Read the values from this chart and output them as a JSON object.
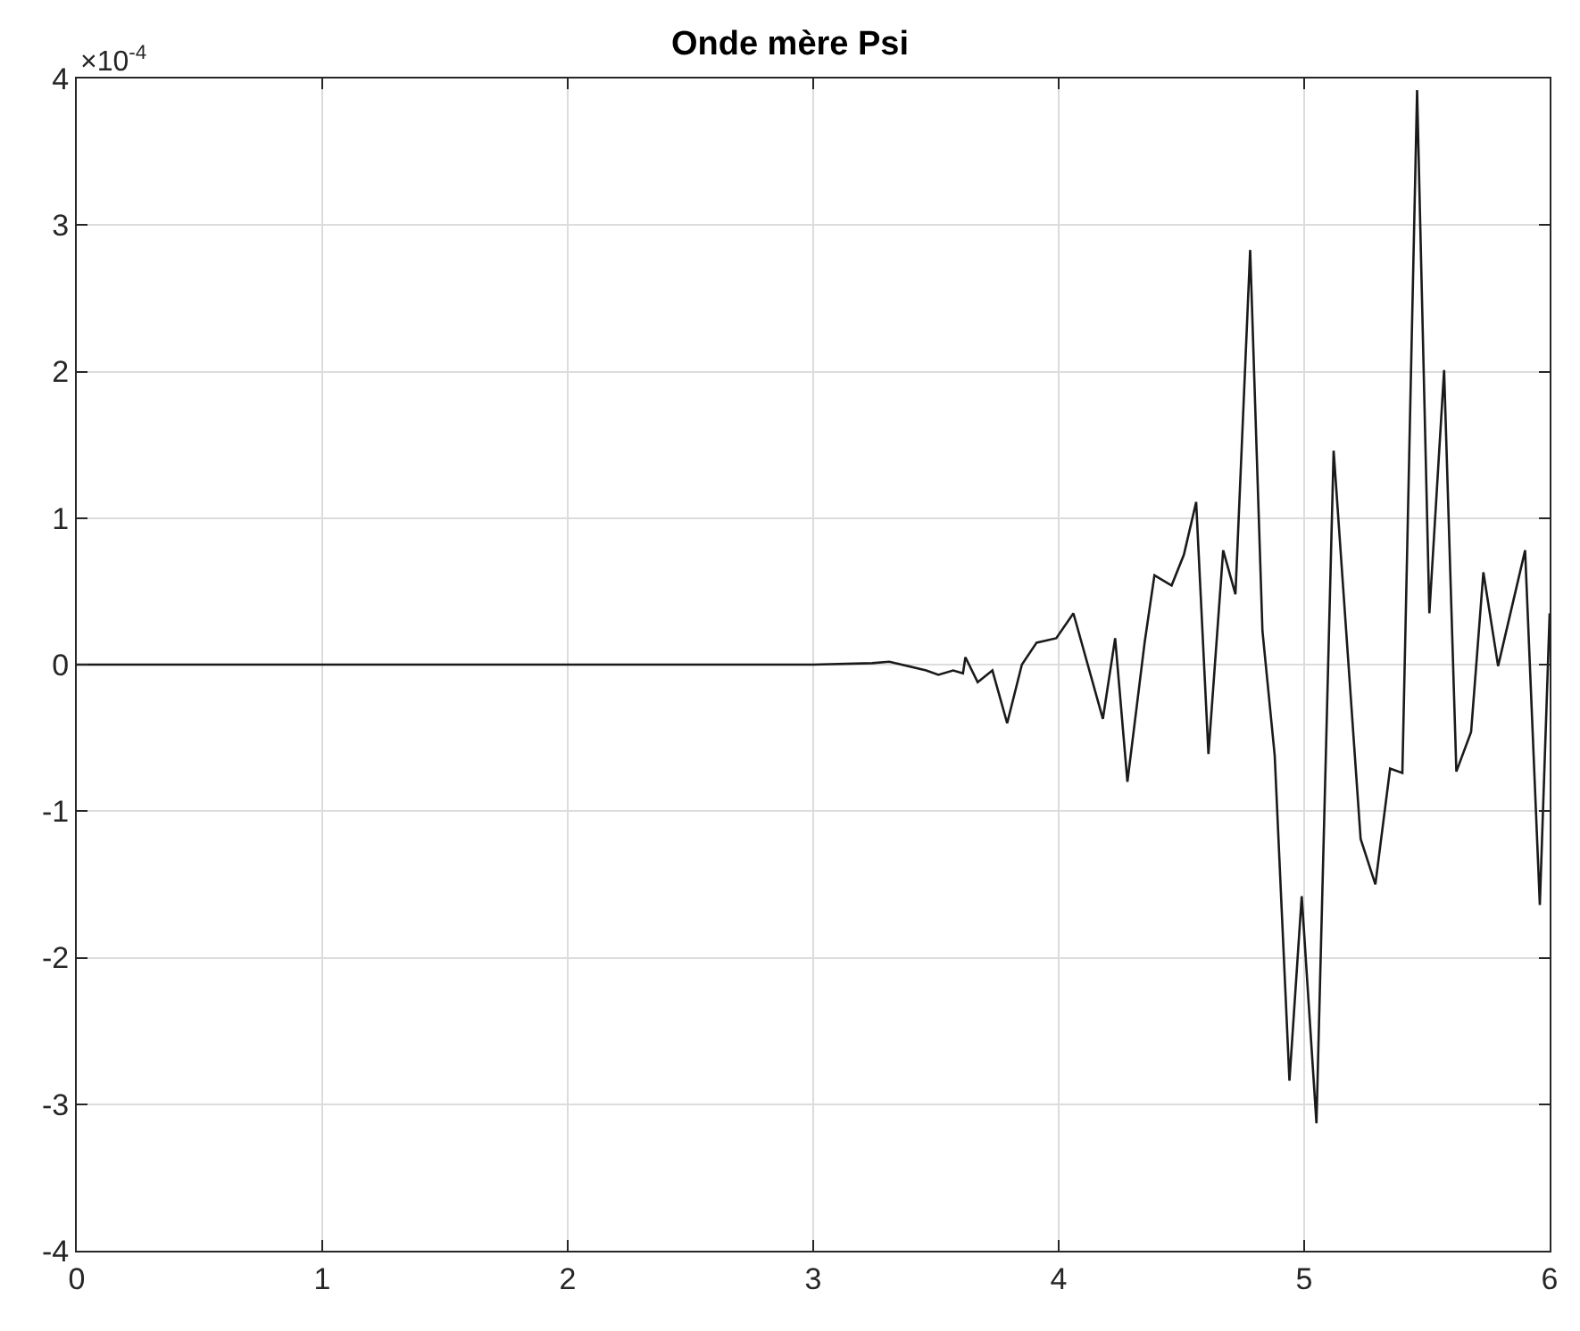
{
  "chart_data": {
    "type": "line",
    "title": "Onde mère Psi",
    "x": [
      0,
      3.0,
      3.24,
      3.31,
      3.46,
      3.51,
      3.57,
      3.61,
      3.62,
      3.67,
      3.73,
      3.79,
      3.85,
      3.91,
      3.99,
      4.06,
      4.18,
      4.23,
      4.28,
      4.35,
      4.39,
      4.46,
      4.51,
      4.56,
      4.61,
      4.67,
      4.72,
      4.78,
      4.83,
      4.88,
      4.94,
      4.99,
      5.05,
      5.12,
      5.23,
      5.29,
      5.35,
      5.4,
      5.46,
      5.51,
      5.57,
      5.62,
      5.68,
      5.73,
      5.79,
      5.9,
      5.96,
      6.0
    ],
    "series": [
      {
        "color": "#1a1a1a",
        "values": [
          0,
          0,
          0.01,
          0.02,
          -0.04,
          -0.07,
          -0.04,
          -0.06,
          0.05,
          -0.12,
          -0.04,
          -0.4,
          0,
          0.15,
          0.18,
          0.35,
          -0.37,
          0.18,
          -0.8,
          0.15,
          0.61,
          0.54,
          0.75,
          1.11,
          -0.61,
          0.78,
          0.48,
          2.83,
          0.23,
          -0.62,
          -2.84,
          -1.58,
          -3.13,
          1.46,
          -1.19,
          -1.5,
          -0.71,
          -0.74,
          3.92,
          0.35,
          2.01,
          -0.73,
          -0.46,
          0.63,
          -0.01,
          0.78,
          -1.64,
          0.35
        ]
      }
    ],
    "xlim": [
      0,
      6
    ],
    "xticks": [
      0,
      1,
      2,
      3,
      4,
      5,
      6
    ],
    "ylim": [
      -4,
      4
    ],
    "yticks": [
      -4,
      -3,
      -2,
      -1,
      0,
      1,
      2,
      3,
      4
    ],
    "annotations": [
      "×10$^{-4}$"
    ],
    "grid": true,
    "marker": "none",
    "line_style": "solid"
  }
}
